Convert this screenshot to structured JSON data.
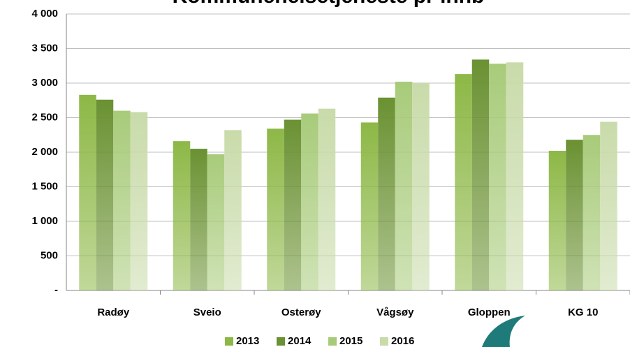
{
  "chart_data": {
    "type": "bar",
    "title": "Kommunehelsetjeneste pr innb",
    "categories": [
      "Radøy",
      "Sveio",
      "Osterøy",
      "Vågsøy",
      "Gloppen",
      "KG 10"
    ],
    "series": [
      {
        "name": "2013",
        "color": "#8db846",
        "values": [
          2830,
          2160,
          2340,
          2430,
          3130,
          2020
        ]
      },
      {
        "name": "2014",
        "color": "#6a9132",
        "values": [
          2760,
          2050,
          2470,
          2790,
          3340,
          2180
        ]
      },
      {
        "name": "2015",
        "color": "#a8cb7a",
        "values": [
          2600,
          1970,
          2560,
          3020,
          3280,
          2250
        ]
      },
      {
        "name": "2016",
        "color": "#c9dbaa",
        "values": [
          2580,
          2320,
          2630,
          3000,
          3300,
          2440
        ]
      }
    ],
    "ylim": [
      0,
      4000
    ],
    "yticks": [
      {
        "value": 0,
        "label": "-"
      },
      500,
      {
        "value": 1000,
        "label": "1 000"
      },
      {
        "value": 1500,
        "label": "1 500"
      },
      {
        "value": 2000,
        "label": "2 000"
      },
      {
        "value": 2500,
        "label": "2 500"
      },
      {
        "value": 3000,
        "label": "3 000"
      },
      {
        "value": 3500,
        "label": "3 500"
      },
      {
        "value": 4000,
        "label": "4 000"
      }
    ],
    "grid": true,
    "legend": "bottom"
  }
}
